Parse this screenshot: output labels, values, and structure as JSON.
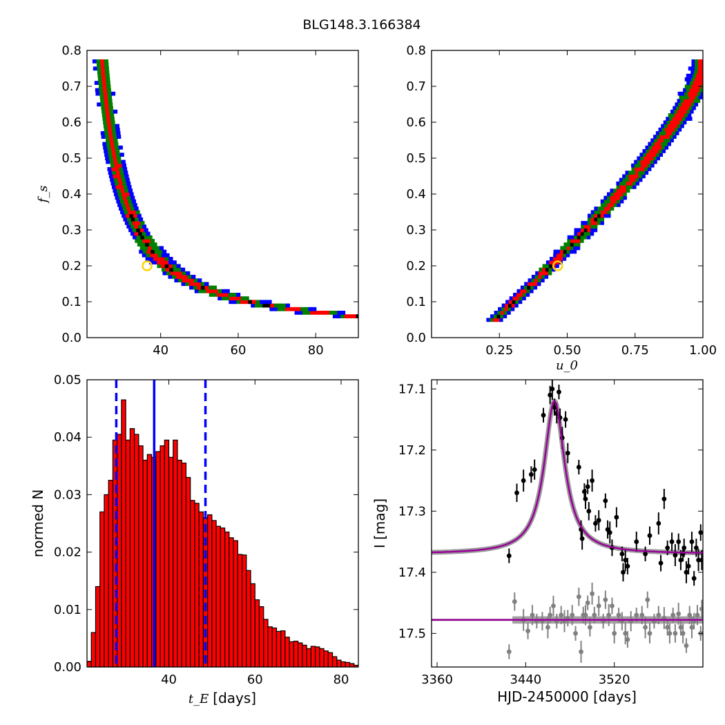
{
  "title": "BLG148.3.166384",
  "colors": {
    "outer": "#0000ff",
    "mid": "#008000",
    "inner": "#ff0000",
    "core": "#000000",
    "best_marker": "#ffd400",
    "bar": "#ff0000",
    "median_line": "#0000ff",
    "model": "#990099",
    "model_band": "#909090",
    "data_event": "#000000",
    "data_ref": "#808080"
  },
  "chart_data": [
    {
      "type": "heatmap",
      "panel": "top-left",
      "xlabel": "",
      "ylabel": "f_s",
      "xlim": [
        21,
        91
      ],
      "ylim": [
        0.0,
        0.8
      ],
      "xticks": [
        "40",
        "60",
        "80"
      ],
      "yticks": [
        "0.0",
        "0.1",
        "0.2",
        "0.3",
        "0.4",
        "0.5",
        "0.6",
        "0.7",
        "0.8"
      ],
      "ridge_curve": {
        "form": "t = 18.5 + 5.0 / fs^0.95",
        "fs_range": [
          0.05,
          0.77
        ]
      },
      "best_fit": {
        "x": 36.5,
        "y": 0.2
      }
    },
    {
      "type": "heatmap",
      "panel": "top-right",
      "xlabel": "u_0",
      "ylabel": "",
      "xlim": [
        0.0,
        1.0
      ],
      "ylim": [
        0.0,
        0.8
      ],
      "xticks": [
        "0.25",
        "0.50",
        "0.75",
        "1.00"
      ],
      "yticks": [
        "0.0",
        "0.1",
        "0.2",
        "0.3",
        "0.4",
        "0.5",
        "0.6",
        "0.7",
        "0.8"
      ],
      "ridge_curve": {
        "form": "u0 = 1.0 - 0.84 * (1 - fs/0.75)^1.3",
        "fs_range": [
          0.05,
          0.77
        ]
      },
      "best_fit": {
        "x": 0.465,
        "y": 0.2
      }
    },
    {
      "type": "bar",
      "panel": "bottom-left",
      "xlabel": "[days]",
      "xlabel_symbol": "t_E",
      "ylabel": "normed N",
      "xlim": [
        21,
        84
      ],
      "ylim": [
        0.0,
        0.05
      ],
      "xticks": [
        "40",
        "60",
        "80"
      ],
      "yticks": [
        "0.00",
        "0.01",
        "0.02",
        "0.03",
        "0.04",
        "0.05"
      ],
      "bin_start": 21.0,
      "bin_width": 1.0,
      "values": [
        0.001,
        0.006,
        0.014,
        0.027,
        0.03,
        0.0325,
        0.0395,
        0.0405,
        0.0465,
        0.0395,
        0.0415,
        0.0405,
        0.0385,
        0.036,
        0.037,
        0.0365,
        0.0375,
        0.0385,
        0.0395,
        0.0365,
        0.0395,
        0.036,
        0.0355,
        0.033,
        0.029,
        0.0285,
        0.027,
        0.026,
        0.0265,
        0.0255,
        0.0245,
        0.0242,
        0.0235,
        0.0225,
        0.022,
        0.0196,
        0.0195,
        0.0168,
        0.0145,
        0.0117,
        0.0105,
        0.0083,
        0.007,
        0.0068,
        0.0062,
        0.0063,
        0.0052,
        0.0044,
        0.0045,
        0.0042,
        0.0038,
        0.0032,
        0.0036,
        0.0035,
        0.0032,
        0.0028,
        0.0025,
        0.0018,
        0.0012,
        0.0009,
        0.0008,
        0.0006,
        0.0003
      ],
      "median": 36.6,
      "interval": [
        27.8,
        48.5
      ]
    },
    {
      "type": "scatter",
      "panel": "bottom-right",
      "xlabel": "HJD-2450000 [days]",
      "ylabel": "I [mag]",
      "xlim": [
        3355,
        3600
      ],
      "ylim": [
        17.555,
        17.085
      ],
      "xticks": [
        "3360",
        "3440",
        "3520"
      ],
      "yticks": [
        "17.1",
        "17.2",
        "17.3",
        "17.4",
        "17.5"
      ],
      "model": {
        "t0": 3466,
        "baseline": 17.37,
        "peak_mag": 17.12,
        "t_scale": 37
      },
      "reference_level": 17.478,
      "series": [
        {
          "role": "event",
          "points": [
            [
              3425,
              17.373
            ],
            [
              3432,
              17.27
            ],
            [
              3438,
              17.25
            ],
            [
              3445,
              17.24
            ],
            [
              3448,
              17.232
            ],
            [
              3456,
              17.143
            ],
            [
              3462,
              17.11
            ],
            [
              3464,
              17.1
            ],
            [
              3466,
              17.13
            ],
            [
              3468,
              17.14
            ],
            [
              3470,
              17.105
            ],
            [
              3471,
              17.147
            ],
            [
              3473,
              17.18
            ],
            [
              3476,
              17.15
            ],
            [
              3478,
              17.205
            ],
            [
              3488,
              17.228
            ],
            [
              3490,
              17.33
            ],
            [
              3491,
              17.345
            ],
            [
              3493,
              17.268
            ],
            [
              3494,
              17.28
            ],
            [
              3496,
              17.26
            ],
            [
              3497,
              17.3
            ],
            [
              3500,
              17.25
            ],
            [
              3503,
              17.32
            ],
            [
              3506,
              17.315
            ],
            [
              3512,
              17.283
            ],
            [
              3514,
              17.33
            ],
            [
              3516,
              17.335
            ],
            [
              3518,
              17.36
            ],
            [
              3522,
              17.31
            ],
            [
              3527,
              17.37
            ],
            [
              3528,
              17.4
            ],
            [
              3530,
              17.38
            ],
            [
              3532,
              17.39
            ],
            [
              3540,
              17.35
            ],
            [
              3548,
              17.37
            ],
            [
              3552,
              17.34
            ],
            [
              3560,
              17.32
            ],
            [
              3562,
              17.385
            ],
            [
              3565,
              17.28
            ],
            [
              3568,
              17.36
            ],
            [
              3572,
              17.35
            ],
            [
              3575,
              17.372
            ],
            [
              3578,
              17.35
            ],
            [
              3580,
              17.38
            ],
            [
              3582,
              17.37
            ],
            [
              3583,
              17.36
            ],
            [
              3585,
              17.4
            ],
            [
              3587,
              17.39
            ],
            [
              3590,
              17.35
            ],
            [
              3592,
              17.41
            ],
            [
              3594,
              17.36
            ],
            [
              3596,
              17.38
            ],
            [
              3598,
              17.335
            ],
            [
              3599,
              17.38
            ]
          ]
        },
        {
          "role": "reference",
          "points": [
            [
              3425,
              17.53
            ],
            [
              3430,
              17.448
            ],
            [
              3438,
              17.478
            ],
            [
              3442,
              17.496
            ],
            [
              3446,
              17.47
            ],
            [
              3450,
              17.48
            ],
            [
              3455,
              17.48
            ],
            [
              3460,
              17.49
            ],
            [
              3462,
              17.47
            ],
            [
              3465,
              17.455
            ],
            [
              3468,
              17.48
            ],
            [
              3472,
              17.47
            ],
            [
              3475,
              17.48
            ],
            [
              3478,
              17.475
            ],
            [
              3482,
              17.47
            ],
            [
              3485,
              17.5
            ],
            [
              3488,
              17.44
            ],
            [
              3490,
              17.53
            ],
            [
              3492,
              17.47
            ],
            [
              3494,
              17.47
            ],
            [
              3496,
              17.45
            ],
            [
              3498,
              17.49
            ],
            [
              3500,
              17.435
            ],
            [
              3502,
              17.47
            ],
            [
              3506,
              17.455
            ],
            [
              3510,
              17.48
            ],
            [
              3512,
              17.445
            ],
            [
              3515,
              17.47
            ],
            [
              3518,
              17.455
            ],
            [
              3520,
              17.5
            ],
            [
              3524,
              17.47
            ],
            [
              3527,
              17.48
            ],
            [
              3530,
              17.5
            ],
            [
              3532,
              17.51
            ],
            [
              3535,
              17.48
            ],
            [
              3540,
              17.47
            ],
            [
              3545,
              17.47
            ],
            [
              3548,
              17.49
            ],
            [
              3550,
              17.445
            ],
            [
              3552,
              17.5
            ],
            [
              3556,
              17.48
            ],
            [
              3560,
              17.47
            ],
            [
              3565,
              17.475
            ],
            [
              3568,
              17.49
            ],
            [
              3570,
              17.5
            ],
            [
              3573,
              17.47
            ],
            [
              3575,
              17.5
            ],
            [
              3578,
              17.468
            ],
            [
              3580,
              17.49
            ],
            [
              3582,
              17.5
            ],
            [
              3585,
              17.52
            ],
            [
              3588,
              17.47
            ],
            [
              3590,
              17.49
            ],
            [
              3592,
              17.48
            ],
            [
              3595,
              17.47
            ],
            [
              3598,
              17.5
            ],
            [
              3599,
              17.46
            ]
          ]
        }
      ]
    }
  ]
}
